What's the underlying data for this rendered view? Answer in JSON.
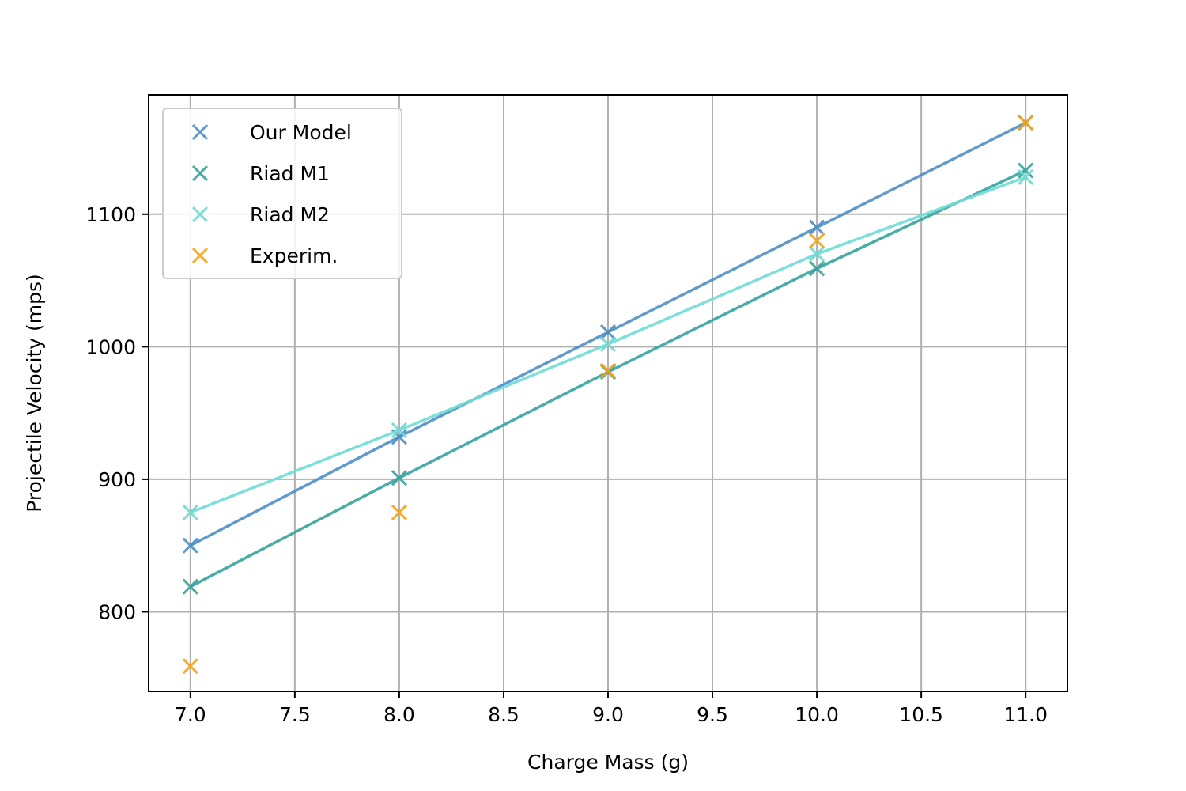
{
  "chart_data": {
    "type": "scatter",
    "xlabel": "Charge Mass (g)",
    "ylabel": "Projectile Velocity (mps)",
    "xlim": [
      6.8,
      11.2
    ],
    "ylim": [
      740,
      1190
    ],
    "x_ticks": [
      7.0,
      7.5,
      8.0,
      8.5,
      9.0,
      9.5,
      10.0,
      10.5,
      11.0
    ],
    "x_tick_labels": [
      "7.0",
      "7.5",
      "8.0",
      "8.5",
      "9.0",
      "9.5",
      "10.0",
      "10.5",
      "11.0"
    ],
    "y_ticks": [
      800,
      900,
      1000,
      1100
    ],
    "y_tick_labels": [
      "800",
      "900",
      "1000",
      "1100"
    ],
    "grid": true,
    "legend_position": "top-left",
    "x": [
      7.0,
      8.0,
      9.0,
      10.0,
      11.0
    ],
    "series": [
      {
        "name": "Our Model",
        "color": "#4e8fc7",
        "line": true,
        "values": [
          850,
          932,
          1011,
          1090,
          1169
        ]
      },
      {
        "name": "Riad M1",
        "color": "#36a39c",
        "line": true,
        "values": [
          819,
          901,
          981,
          1059,
          1133
        ]
      },
      {
        "name": "Riad M2",
        "color": "#6fdbd5",
        "line": true,
        "values": [
          875,
          937,
          1002,
          1070,
          1128
        ]
      },
      {
        "name": "Experim.",
        "color": "#f7a414",
        "line": false,
        "values": [
          759,
          875,
          982,
          1080,
          1169
        ]
      }
    ]
  }
}
